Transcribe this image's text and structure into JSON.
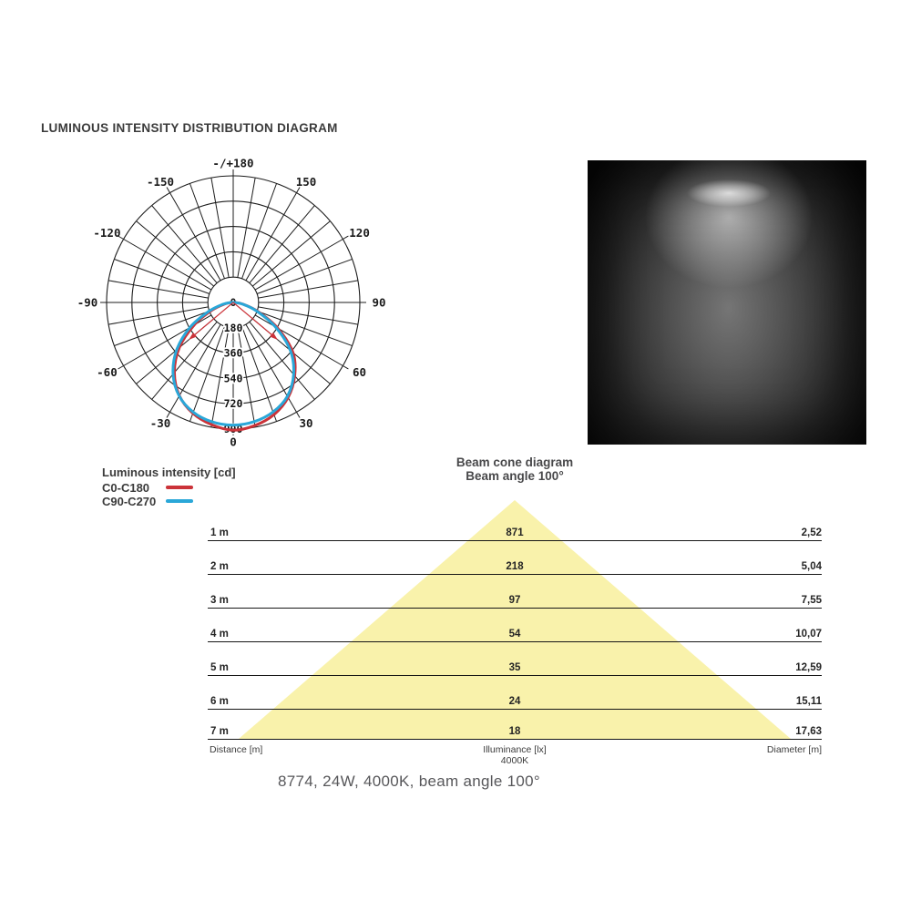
{
  "title": "LUMINOUS INTENSITY DISTRIBUTION DIAGRAM",
  "caption": "8774, 24W, 4000K, beam angle 100°",
  "colors": {
    "c0_c180": "#cb3339",
    "c90_c270": "#2aa7d8",
    "grid": "#1c1c1c",
    "label_text": "#1a1a1a",
    "cone_fill": "#f9f2ab",
    "text_dark": "#3b3b3b",
    "text_gray": "#57575a"
  },
  "legend": {
    "title": "Luminous intensity [cd]",
    "entries": [
      {
        "label": "C0-C180",
        "color": "#cb3339"
      },
      {
        "label": "C90-C270",
        "color": "#2aa7d8"
      }
    ]
  },
  "polar": {
    "radial_tick_labels": [
      "0",
      "180",
      "360",
      "540",
      "720",
      "900"
    ],
    "radial_tick_values": [
      0,
      180,
      360,
      540,
      720,
      900
    ],
    "max_value": 900,
    "angle_step_deg": 10,
    "angle_labels": [
      {
        "angle": 180,
        "label": "-/+180"
      },
      {
        "angle": -150,
        "label": "-150"
      },
      {
        "angle": 150,
        "label": "150"
      },
      {
        "angle": -120,
        "label": "-120"
      },
      {
        "angle": 120,
        "label": "120"
      },
      {
        "angle": -90,
        "label": "-90"
      },
      {
        "angle": 90,
        "label": "90"
      },
      {
        "angle": -60,
        "label": "-60"
      },
      {
        "angle": 60,
        "label": "60"
      },
      {
        "angle": -30,
        "label": "-30"
      },
      {
        "angle": 30,
        "label": "30"
      },
      {
        "angle": 0,
        "label": "0"
      }
    ],
    "beam_indicator": {
      "half_angle_deg": 50,
      "value": 400
    }
  },
  "beam_cone": {
    "title": "Beam cone diagram",
    "subtitle": "Beam angle 100°",
    "footer": {
      "left": "Distance [m]",
      "center": "Illuminance [lx]",
      "center_sub": "4000K",
      "right": "Diameter [m]"
    }
  },
  "chart_data": [
    {
      "type": "line",
      "subtype": "polar-luminous-intensity",
      "title": "Luminous intensity [cd]",
      "units": "cd",
      "radial_ticks": [
        0,
        180,
        360,
        540,
        720,
        900
      ],
      "radial_max": 900,
      "angle_tick_step_deg": 10,
      "angle_labels_deg": [
        -180,
        -150,
        -120,
        -90,
        -60,
        -30,
        0,
        30,
        60,
        90,
        120,
        150,
        180
      ],
      "beam_angle_deg": 100,
      "legend_position": "bottom-left",
      "angles_deg_from_nadir": [
        -95,
        -90,
        -80,
        -70,
        -60,
        -50,
        -40,
        -30,
        -20,
        -10,
        0,
        10,
        20,
        30,
        40,
        50,
        60,
        70,
        80,
        90,
        95
      ],
      "series": [
        {
          "name": "C0-C180",
          "color": "#cb3339",
          "values": [
            0,
            10,
            60,
            160,
            320,
            500,
            650,
            765,
            838,
            882,
            908,
            888,
            848,
            780,
            680,
            555,
            365,
            185,
            70,
            12,
            0
          ]
        },
        {
          "name": "C90-C270",
          "color": "#2aa7d8",
          "values": [
            0,
            14,
            75,
            185,
            355,
            525,
            665,
            768,
            830,
            862,
            872,
            860,
            828,
            770,
            668,
            530,
            345,
            175,
            66,
            10,
            0
          ]
        }
      ]
    },
    {
      "type": "table",
      "title": "Beam cone diagram",
      "subtitle": "Beam angle 100°",
      "columns": [
        "Distance [m]",
        "Illuminance [lx]",
        "Diameter [m]"
      ],
      "color_temperature": "4000K",
      "rows": [
        {
          "distance": "1 m",
          "illuminance": "871",
          "diameter": "2,52"
        },
        {
          "distance": "2 m",
          "illuminance": "218",
          "diameter": "5,04"
        },
        {
          "distance": "3 m",
          "illuminance": "97",
          "diameter": "7,55"
        },
        {
          "distance": "4 m",
          "illuminance": "54",
          "diameter": "10,07"
        },
        {
          "distance": "5 m",
          "illuminance": "35",
          "diameter": "12,59"
        },
        {
          "distance": "6 m",
          "illuminance": "24",
          "diameter": "15,11"
        },
        {
          "distance": "7 m",
          "illuminance": "18",
          "diameter": "17,63"
        }
      ]
    }
  ]
}
